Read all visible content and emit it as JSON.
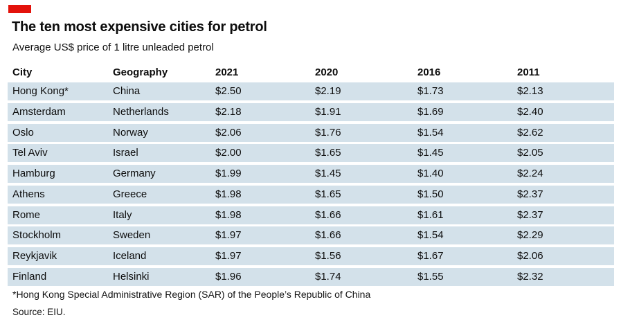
{
  "brand": {
    "red_tab_color": "#e3120b"
  },
  "header": {
    "title": "The ten most expensive cities for petrol",
    "subtitle": "Average US$ price of 1 litre unleaded petrol"
  },
  "table": {
    "row_background": "#d3e1ea",
    "columns": [
      "City",
      "Geography",
      "2021",
      "2020",
      "2016",
      "2011"
    ],
    "rows": [
      [
        "Hong Kong*",
        "China",
        "$2.50",
        "$2.19",
        "$1.73",
        "$2.13"
      ],
      [
        "Amsterdam",
        "Netherlands",
        "$2.18",
        "$1.91",
        "$1.69",
        "$2.40"
      ],
      [
        "Oslo",
        "Norway",
        "$2.06",
        "$1.76",
        "$1.54",
        "$2.62"
      ],
      [
        "Tel Aviv",
        "Israel",
        "$2.00",
        "$1.65",
        "$1.45",
        "$2.05"
      ],
      [
        "Hamburg",
        "Germany",
        "$1.99",
        "$1.45",
        "$1.40",
        "$2.24"
      ],
      [
        "Athens",
        "Greece",
        "$1.98",
        "$1.65",
        "$1.50",
        "$2.37"
      ],
      [
        "Rome",
        "Italy",
        "$1.98",
        "$1.66",
        "$1.61",
        "$2.37"
      ],
      [
        "Stockholm",
        "Sweden",
        "$1.97",
        "$1.66",
        "$1.54",
        "$2.29"
      ],
      [
        "Reykjavik",
        "Iceland",
        "$1.97",
        "$1.56",
        "$1.67",
        "$2.06"
      ],
      [
        "Finland",
        "Helsinki",
        "$1.96",
        "$1.74",
        "$1.55",
        "$2.32"
      ]
    ]
  },
  "footnote": "*Hong Kong Special Administrative Region (SAR) of the People’s Republic of China",
  "source": "Source: EIU.",
  "chart_data": {
    "type": "table",
    "title": "The ten most expensive cities for petrol",
    "subtitle": "Average US$ price of 1 litre unleaded petrol",
    "columns": [
      "City",
      "Geography",
      "2021",
      "2020",
      "2016",
      "2011"
    ],
    "rows": [
      {
        "city": "Hong Kong*",
        "geography": "China",
        "2021": 2.5,
        "2020": 2.19,
        "2016": 1.73,
        "2011": 2.13
      },
      {
        "city": "Amsterdam",
        "geography": "Netherlands",
        "2021": 2.18,
        "2020": 1.91,
        "2016": 1.69,
        "2011": 2.4
      },
      {
        "city": "Oslo",
        "geography": "Norway",
        "2021": 2.06,
        "2020": 1.76,
        "2016": 1.54,
        "2011": 2.62
      },
      {
        "city": "Tel Aviv",
        "geography": "Israel",
        "2021": 2.0,
        "2020": 1.65,
        "2016": 1.45,
        "2011": 2.05
      },
      {
        "city": "Hamburg",
        "geography": "Germany",
        "2021": 1.99,
        "2020": 1.45,
        "2016": 1.4,
        "2011": 2.24
      },
      {
        "city": "Athens",
        "geography": "Greece",
        "2021": 1.98,
        "2020": 1.65,
        "2016": 1.5,
        "2011": 2.37
      },
      {
        "city": "Rome",
        "geography": "Italy",
        "2021": 1.98,
        "2020": 1.66,
        "2016": 1.61,
        "2011": 2.37
      },
      {
        "city": "Stockholm",
        "geography": "Sweden",
        "2021": 1.97,
        "2020": 1.66,
        "2016": 1.54,
        "2011": 2.29
      },
      {
        "city": "Reykjavik",
        "geography": "Iceland",
        "2021": 1.97,
        "2020": 1.56,
        "2016": 1.67,
        "2011": 2.06
      },
      {
        "city": "Finland",
        "geography": "Helsinki",
        "2021": 1.96,
        "2020": 1.74,
        "2016": 1.55,
        "2011": 2.32
      }
    ],
    "units": "US$ per litre",
    "footnote": "*Hong Kong Special Administrative Region (SAR) of the People’s Republic of China",
    "source": "Source: EIU."
  }
}
